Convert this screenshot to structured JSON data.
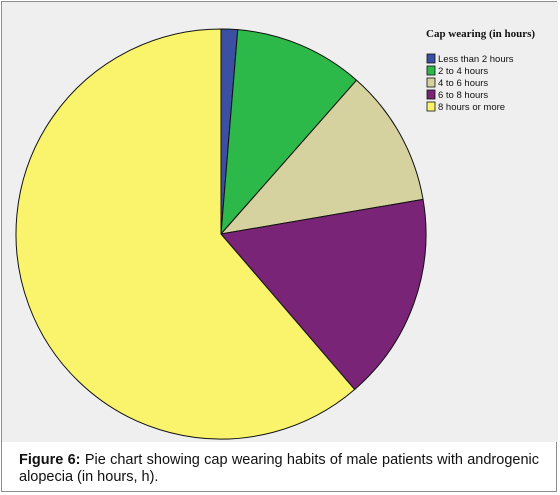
{
  "chart_data": {
    "type": "pie",
    "title": "",
    "legend_title": "Cap wearing (in hours)",
    "legend_position": "top-right",
    "start_angle_deg": 0,
    "direction": "clockwise",
    "slices": [
      {
        "label": "Less than 2 hours",
        "value": 1.3,
        "color": "#3b4fa3"
      },
      {
        "label": "2 to 4 hours",
        "value": 10.2,
        "color": "#2db84a"
      },
      {
        "label": "4 to 6 hours",
        "value": 10.8,
        "color": "#d6d29f"
      },
      {
        "label": "6 to 8 hours",
        "value": 16.4,
        "color": "#7a2477"
      },
      {
        "label": "8 hours or more",
        "value": 61.3,
        "color": "#f9f46c"
      }
    ]
  },
  "caption": {
    "label": "Figure 6:",
    "text": " Pie chart showing cap wearing habits of male patients with androgenic alopecia (in hours, h)."
  }
}
